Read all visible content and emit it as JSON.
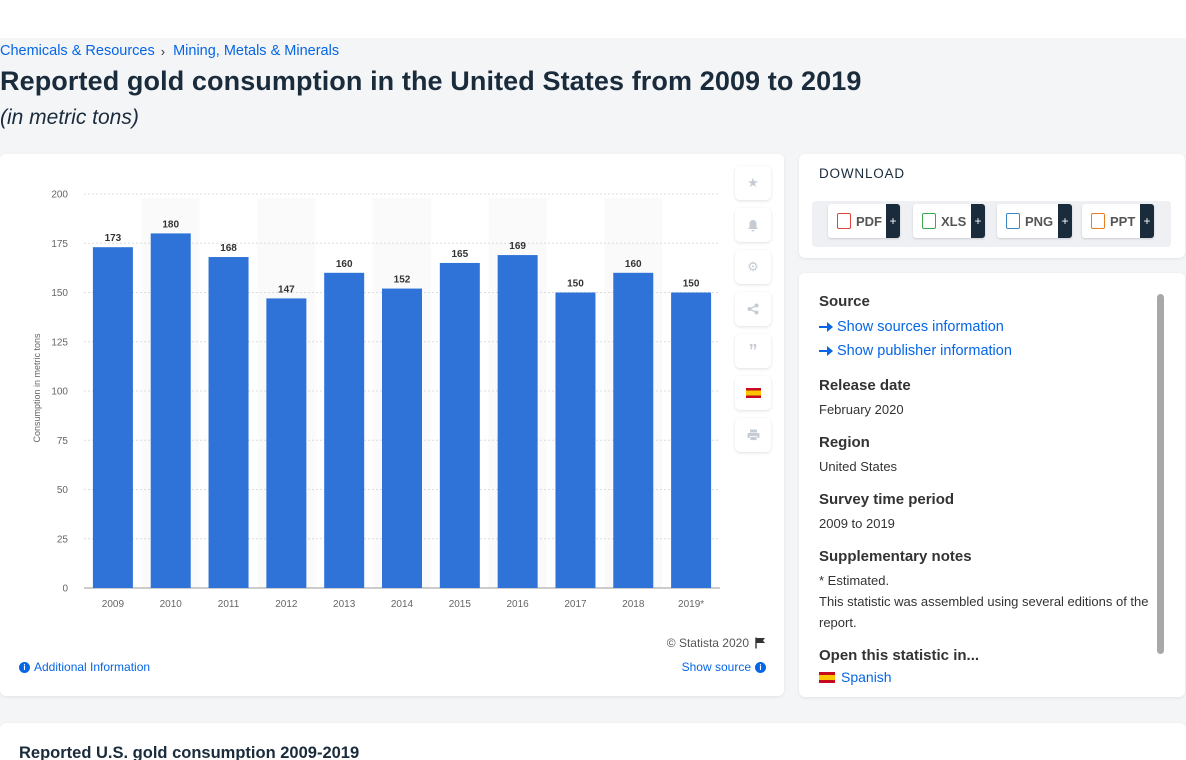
{
  "breadcrumb": {
    "item1": "Chemicals & Resources",
    "separator": "›",
    "item2": "Mining, Metals & Minerals"
  },
  "page": {
    "title": "Reported gold consumption in the United States from 2009 to 2019",
    "subtitle": "(in metric tons)"
  },
  "chart_data": {
    "type": "bar",
    "categories": [
      "2009",
      "2010",
      "2011",
      "2012",
      "2013",
      "2014",
      "2015",
      "2016",
      "2017",
      "2018",
      "2019*"
    ],
    "values": [
      173,
      180,
      168,
      147,
      160,
      152,
      165,
      169,
      150,
      160,
      150
    ],
    "xlabel": "",
    "ylabel": "Consumption in metric tons",
    "ylim": [
      0,
      200
    ],
    "yticks": [
      0,
      25,
      50,
      75,
      100,
      125,
      150,
      175,
      200
    ],
    "grid": true,
    "bar_color": "#2f73d8"
  },
  "chart_footer": {
    "copyright": "© Statista 2020",
    "additional_info": "Additional Information",
    "show_source": "Show source"
  },
  "tools": [
    "star-icon",
    "bell-icon",
    "gear-icon",
    "share-icon",
    "quote-icon",
    "flag-es-icon",
    "print-icon"
  ],
  "download": {
    "title": "DOWNLOAD",
    "buttons": [
      {
        "label": "PDF",
        "color": "#e0443c"
      },
      {
        "label": "XLS",
        "color": "#3aa84f"
      },
      {
        "label": "PNG",
        "color": "#3d86c6"
      },
      {
        "label": "PPT",
        "color": "#e67e22"
      }
    ],
    "plus": "+"
  },
  "info": {
    "source_h": "Source",
    "show_sources": "Show sources information",
    "show_publisher": "Show publisher information",
    "release_h": "Release date",
    "release_v": "February 2020",
    "region_h": "Region",
    "region_v": "United States",
    "survey_h": "Survey time period",
    "survey_v": "2009 to 2019",
    "supp_h": "Supplementary notes",
    "supp_v1": "* Estimated.",
    "supp_v2": "This statistic was assembled using several editions of the report.",
    "open_h": "Open this statistic in...",
    "open_v": "Spanish"
  },
  "bottom": {
    "title": "Reported U.S. gold consumption 2009-2019"
  }
}
